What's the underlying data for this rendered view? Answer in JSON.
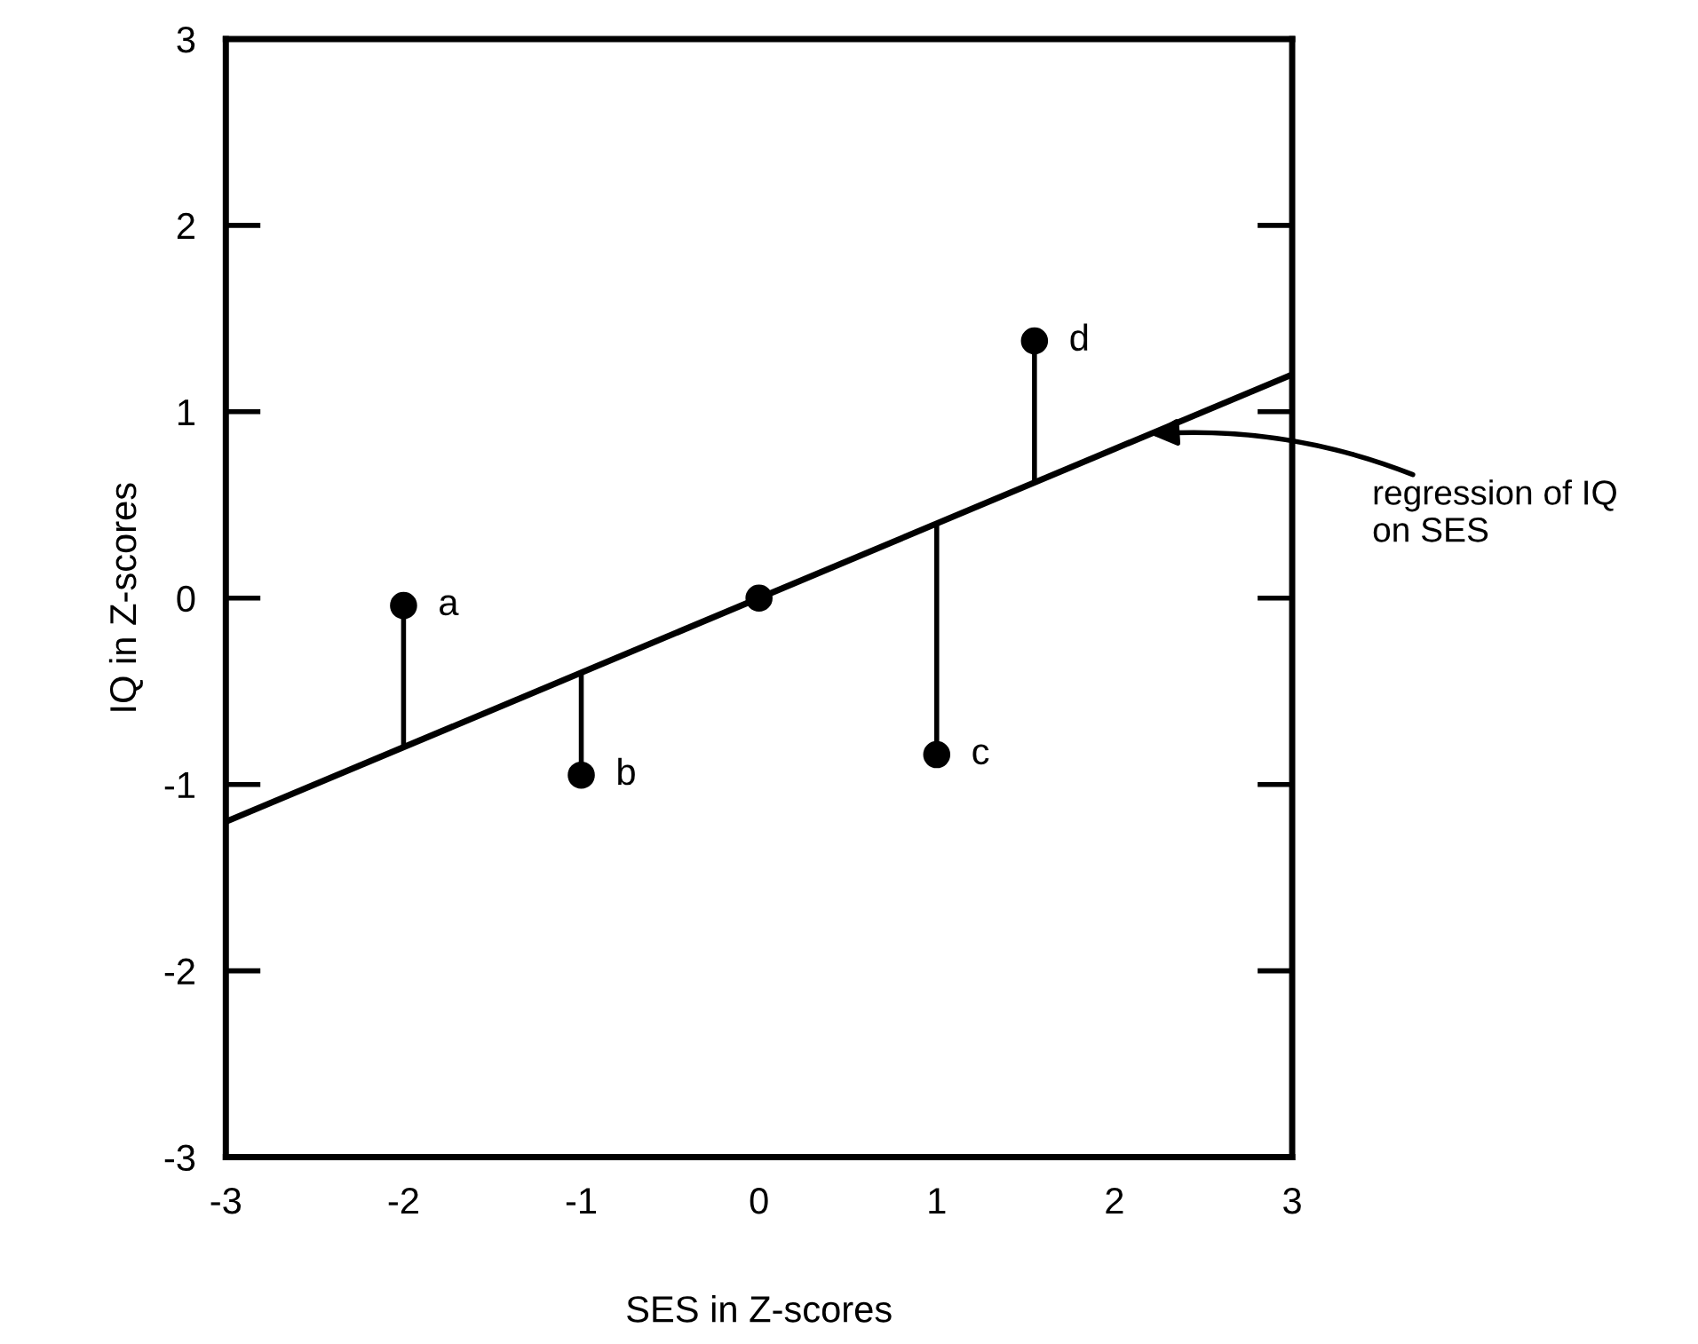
{
  "chart_data": {
    "type": "scatter",
    "xlabel": "SES in Z-scores",
    "ylabel": "IQ in Z-scores",
    "xlim": [
      -3,
      3
    ],
    "ylim": [
      -3,
      3
    ],
    "xticks": [
      -3,
      -2,
      -1,
      0,
      1,
      2,
      3
    ],
    "yticks": [
      -3,
      -2,
      -1,
      0,
      1,
      2,
      3
    ],
    "grid": false,
    "legend": false,
    "series": [
      {
        "color": "#000000",
        "marker": "circle",
        "x": [
          -2,
          -1,
          0,
          1,
          1.55
        ],
        "values": [
          -0.04,
          -0.95,
          0,
          -0.84,
          1.38
        ],
        "errors": [
          [
            -0.8,
            -0.04
          ],
          [
            -0.95,
            -0.4
          ],
          null,
          [
            -0.84,
            0.4
          ],
          [
            0.62,
            1.38
          ]
        ]
      },
      {
        "type": "line",
        "color": "#000000",
        "line_style": "solid",
        "x": [
          -3,
          3
        ],
        "values": [
          -1.2,
          1.2
        ]
      }
    ],
    "annotations": [
      {
        "text": "a",
        "x": -2,
        "y": -0.04
      },
      {
        "text": "b",
        "x": -1,
        "y": -0.95
      },
      {
        "text": "c",
        "x": 1,
        "y": -0.84
      },
      {
        "text": "d",
        "x": 1.55,
        "y": 1.38
      },
      {
        "text": "regression of IQ\non SES",
        "x": 2.2,
        "y": 0.88
      }
    ]
  }
}
